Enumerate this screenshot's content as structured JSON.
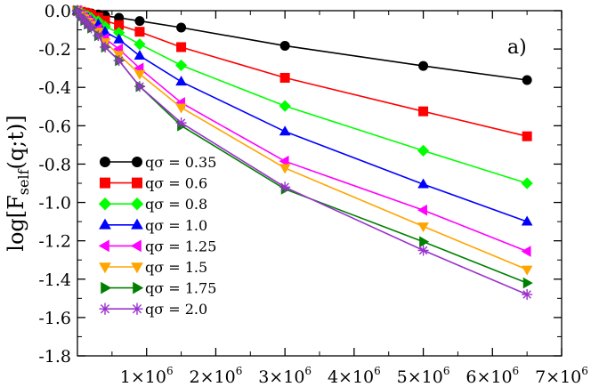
{
  "chart_data": {
    "type": "line",
    "panel_label": "a)",
    "ylabel": "log[F_self(q;t)]",
    "ylabel_parts": {
      "main": "log[F",
      "sub": "self",
      "tail": "(q;t)]"
    },
    "xlabel": "",
    "xlim": [
      0,
      7000000
    ],
    "ylim": [
      -1.8,
      0.0
    ],
    "x_ticks": [
      {
        "value": 1000000,
        "mantissa": "1×10",
        "exp": "6"
      },
      {
        "value": 2000000,
        "mantissa": "2×10",
        "exp": "6"
      },
      {
        "value": 3000000,
        "mantissa": "3×10",
        "exp": "6"
      },
      {
        "value": 4000000,
        "mantissa": "4×10",
        "exp": "6"
      },
      {
        "value": 5000000,
        "mantissa": "5×10",
        "exp": "6"
      },
      {
        "value": 6000000,
        "mantissa": "6×10",
        "exp": "6"
      },
      {
        "value": 7000000,
        "mantissa": "7×10",
        "exp": "6"
      }
    ],
    "y_ticks": [
      {
        "value": 0.0,
        "label": "0.0"
      },
      {
        "value": -0.2,
        "label": "-0.2"
      },
      {
        "value": -0.4,
        "label": "-0.4"
      },
      {
        "value": -0.6,
        "label": "-0.6"
      },
      {
        "value": -0.8,
        "label": "-0.8"
      },
      {
        "value": -1.0,
        "label": "-1.0"
      },
      {
        "value": -1.2,
        "label": "-1.2"
      },
      {
        "value": -1.4,
        "label": "-1.4"
      },
      {
        "value": -1.6,
        "label": "-1.6"
      },
      {
        "value": -1.8,
        "label": "-1.8"
      }
    ],
    "x": [
      0,
      50000,
      100000,
      150000,
      200000,
      300000,
      400000,
      600000,
      900000,
      1500000,
      3000000,
      5000000,
      6500000
    ],
    "series": [
      {
        "name": "qσ = 0.35",
        "color": "#000000",
        "marker": "circle",
        "values": [
          0.0,
          -0.005,
          -0.008,
          -0.011,
          -0.014,
          -0.02,
          -0.026,
          -0.037,
          -0.054,
          -0.088,
          -0.183,
          -0.288,
          -0.362
        ]
      },
      {
        "name": "qσ = 0.6",
        "color": "#ff0000",
        "marker": "square",
        "values": [
          0.0,
          -0.006,
          -0.01,
          -0.015,
          -0.022,
          -0.035,
          -0.052,
          -0.075,
          -0.11,
          -0.19,
          -0.35,
          -0.525,
          -0.655
        ]
      },
      {
        "name": "qσ = 0.8",
        "color": "#00ff00",
        "marker": "diamond",
        "values": [
          0.0,
          -0.01,
          -0.02,
          -0.028,
          -0.038,
          -0.055,
          -0.083,
          -0.115,
          -0.175,
          -0.285,
          -0.497,
          -0.73,
          -0.9
        ]
      },
      {
        "name": "qσ = 1.0",
        "color": "#0000ff",
        "marker": "triangle-up",
        "values": [
          0.0,
          -0.015,
          -0.025,
          -0.036,
          -0.05,
          -0.07,
          -0.11,
          -0.15,
          -0.235,
          -0.37,
          -0.63,
          -0.905,
          -1.1
        ]
      },
      {
        "name": "qσ = 1.25",
        "color": "#ff00ff",
        "marker": "triangle-left",
        "values": [
          0.0,
          -0.02,
          -0.035,
          -0.05,
          -0.065,
          -0.095,
          -0.145,
          -0.2,
          -0.3,
          -0.48,
          -0.785,
          -1.04,
          -1.255
        ]
      },
      {
        "name": "qσ = 1.5",
        "color": "#ffa500",
        "marker": "triangle-down",
        "values": [
          0.0,
          -0.025,
          -0.04,
          -0.058,
          -0.075,
          -0.11,
          -0.165,
          -0.23,
          -0.33,
          -0.505,
          -0.82,
          -1.125,
          -1.35
        ]
      },
      {
        "name": "qσ = 1.75",
        "color": "#008000",
        "marker": "triangle-right",
        "values": [
          0.0,
          -0.03,
          -0.05,
          -0.07,
          -0.09,
          -0.13,
          -0.19,
          -0.26,
          -0.395,
          -0.6,
          -0.93,
          -1.205,
          -1.42
        ]
      },
      {
        "name": "qσ = 2.0",
        "color": "#9933cc",
        "marker": "asterisk",
        "values": [
          0.0,
          -0.03,
          -0.05,
          -0.07,
          -0.09,
          -0.13,
          -0.19,
          -0.26,
          -0.395,
          -0.585,
          -0.92,
          -1.25,
          -1.48
        ]
      }
    ]
  }
}
